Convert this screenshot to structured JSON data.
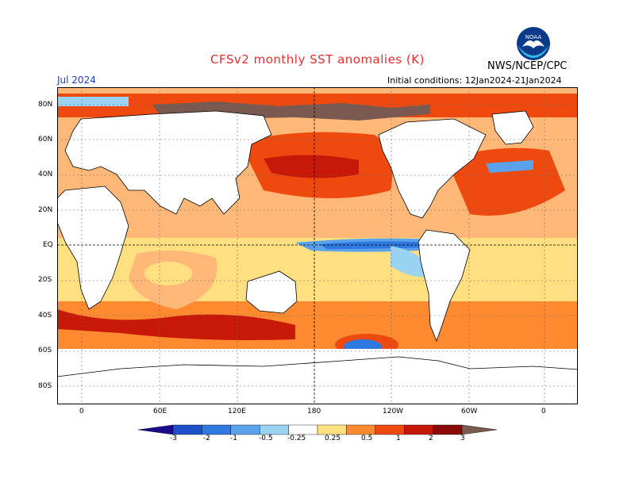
{
  "header": {
    "title": "CFSv2 monthly SST anomalies (K)",
    "org": "NWS/NCEP/CPC",
    "valid": "Jul 2024",
    "init": "Initial conditions: 12Jan2024-21Jan2024",
    "logo_text": "NOAA"
  },
  "axes": {
    "lat_labels": [
      "80N",
      "60N",
      "40N",
      "20N",
      "EQ",
      "20S",
      "40S",
      "60S",
      "80S"
    ],
    "lon_labels": [
      "0",
      "60E",
      "120E",
      "180",
      "120W",
      "60W",
      "0"
    ]
  },
  "colorbar": {
    "labels": [
      "-3",
      "-2",
      "-1",
      "-0.5",
      "-0.25",
      "0.25",
      "0.5",
      "1",
      "2",
      "3"
    ],
    "colors": [
      "#1a0a8c",
      "#1f4fc8",
      "#2f78e0",
      "#5aa2ec",
      "#9ad2f2",
      "#ffffff",
      "#ffe080",
      "#ff8a30",
      "#ee4a10",
      "#c81808",
      "#8a0a08",
      "#7a5a50"
    ]
  }
}
